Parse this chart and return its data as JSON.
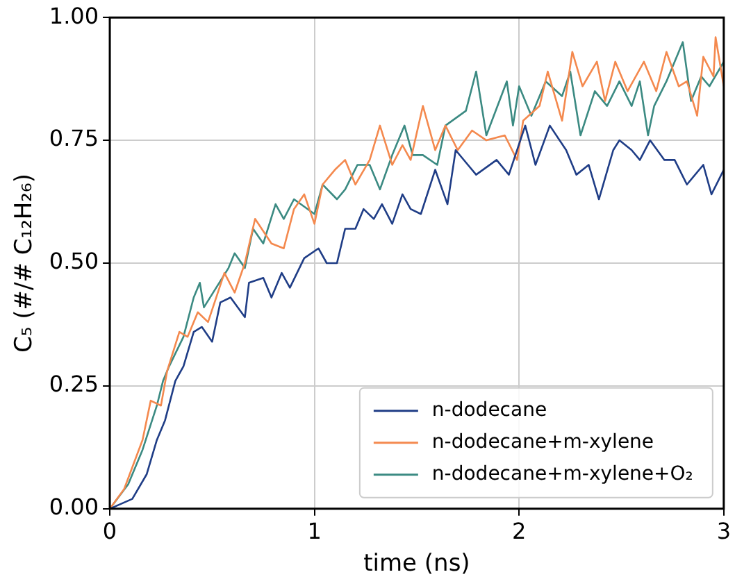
{
  "chart_data": {
    "type": "line",
    "xlabel": "time (ns)",
    "ylabel": "C₅ (#/# C₁₂H₂₆)",
    "xlim": [
      0,
      3
    ],
    "xticks": [
      0,
      1,
      2,
      3
    ],
    "ylim": [
      0,
      1
    ],
    "yticks": [
      {
        "value": 0,
        "label": "0.00"
      },
      {
        "value": 0.25,
        "label": "0.25"
      },
      {
        "value": 0.5,
        "label": "0.50"
      },
      {
        "value": 0.75,
        "label": "0.75"
      },
      {
        "value": 1,
        "label": "1.00"
      }
    ],
    "grid": true,
    "legend": "bottom right",
    "marker": "none",
    "line_style": "solid",
    "series": [
      {
        "name": "n-dodecane",
        "color": "#1f3d86",
        "x": [
          0,
          0.11,
          0.18,
          0.23,
          0.27,
          0.32,
          0.36,
          0.41,
          0.45,
          0.5,
          0.54,
          0.59,
          0.66,
          0.68,
          0.75,
          0.79,
          0.84,
          0.88,
          0.95,
          1.02,
          1.06,
          1.11,
          1.15,
          1.2,
          1.24,
          1.29,
          1.33,
          1.38,
          1.43,
          1.47,
          1.52,
          1.59,
          1.65,
          1.69,
          1.75,
          1.79,
          1.89,
          1.95,
          2.03,
          2.08,
          2.15,
          2.23,
          2.28,
          2.34,
          2.39,
          2.46,
          2.49,
          2.55,
          2.59,
          2.64,
          2.71,
          2.76,
          2.82,
          2.9,
          2.94,
          3.0
        ],
        "values": [
          0,
          0.02,
          0.07,
          0.14,
          0.18,
          0.26,
          0.29,
          0.36,
          0.37,
          0.34,
          0.42,
          0.43,
          0.39,
          0.46,
          0.47,
          0.43,
          0.48,
          0.45,
          0.51,
          0.53,
          0.5,
          0.5,
          0.57,
          0.57,
          0.61,
          0.59,
          0.62,
          0.58,
          0.64,
          0.61,
          0.6,
          0.69,
          0.62,
          0.73,
          0.7,
          0.68,
          0.71,
          0.68,
          0.78,
          0.7,
          0.78,
          0.73,
          0.68,
          0.7,
          0.63,
          0.73,
          0.75,
          0.73,
          0.71,
          0.75,
          0.71,
          0.71,
          0.66,
          0.7,
          0.64,
          0.69
        ]
      },
      {
        "name": "n-dodecane+m-xylene",
        "color": "#f4894e",
        "x": [
          0,
          0.07,
          0.16,
          0.2,
          0.25,
          0.28,
          0.34,
          0.38,
          0.43,
          0.48,
          0.56,
          0.61,
          0.66,
          0.71,
          0.79,
          0.85,
          0.9,
          0.95,
          1.0,
          1.04,
          1.1,
          1.15,
          1.2,
          1.27,
          1.32,
          1.38,
          1.43,
          1.47,
          1.53,
          1.59,
          1.64,
          1.7,
          1.77,
          1.84,
          1.93,
          1.99,
          2.02,
          2.1,
          2.14,
          2.21,
          2.26,
          2.31,
          2.38,
          2.42,
          2.47,
          2.53,
          2.61,
          2.67,
          2.72,
          2.78,
          2.82,
          2.87,
          2.9,
          2.95,
          2.96,
          3.0
        ],
        "values": [
          0,
          0.04,
          0.14,
          0.22,
          0.21,
          0.28,
          0.36,
          0.35,
          0.4,
          0.38,
          0.48,
          0.44,
          0.5,
          0.59,
          0.54,
          0.53,
          0.61,
          0.64,
          0.58,
          0.66,
          0.69,
          0.71,
          0.66,
          0.71,
          0.78,
          0.7,
          0.74,
          0.71,
          0.82,
          0.73,
          0.78,
          0.73,
          0.77,
          0.75,
          0.76,
          0.71,
          0.79,
          0.82,
          0.89,
          0.79,
          0.93,
          0.86,
          0.91,
          0.83,
          0.91,
          0.85,
          0.91,
          0.85,
          0.93,
          0.86,
          0.87,
          0.8,
          0.92,
          0.88,
          0.96,
          0.86
        ]
      },
      {
        "name": "n-dodecane+m-xylene+O₂",
        "color": "#3b8a82",
        "x": [
          0,
          0.09,
          0.16,
          0.23,
          0.26,
          0.29,
          0.36,
          0.41,
          0.44,
          0.46,
          0.52,
          0.58,
          0.61,
          0.66,
          0.7,
          0.75,
          0.81,
          0.85,
          0.9,
          1.0,
          1.04,
          1.11,
          1.15,
          1.21,
          1.27,
          1.32,
          1.38,
          1.44,
          1.48,
          1.53,
          1.6,
          1.64,
          1.74,
          1.79,
          1.84,
          1.94,
          1.97,
          2.0,
          2.06,
          2.13,
          2.21,
          2.25,
          2.3,
          2.37,
          2.43,
          2.49,
          2.55,
          2.59,
          2.63,
          2.66,
          2.72,
          2.78,
          2.8,
          2.84,
          2.89,
          2.93,
          3.0
        ],
        "values": [
          0,
          0.05,
          0.12,
          0.21,
          0.26,
          0.29,
          0.35,
          0.43,
          0.46,
          0.41,
          0.45,
          0.49,
          0.52,
          0.49,
          0.57,
          0.54,
          0.62,
          0.59,
          0.63,
          0.6,
          0.66,
          0.63,
          0.65,
          0.7,
          0.7,
          0.65,
          0.72,
          0.78,
          0.72,
          0.72,
          0.7,
          0.78,
          0.81,
          0.89,
          0.76,
          0.87,
          0.78,
          0.86,
          0.8,
          0.87,
          0.84,
          0.89,
          0.76,
          0.85,
          0.82,
          0.87,
          0.82,
          0.87,
          0.76,
          0.82,
          0.87,
          0.93,
          0.95,
          0.83,
          0.88,
          0.86,
          0.91
        ]
      }
    ]
  }
}
